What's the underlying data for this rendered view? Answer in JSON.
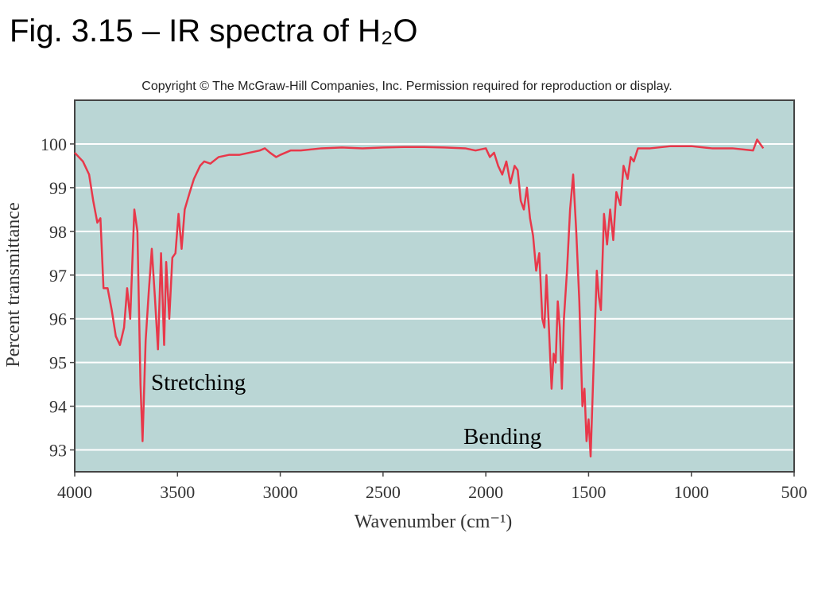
{
  "chart_data": {
    "type": "line",
    "title": "Fig. 3.15 – IR spectra of H₂O",
    "subtitle": "Copyright © The McGraw-Hill Companies, Inc. Permission required for reproduction or display.",
    "x_label": "Wavenumber (cm⁻¹)",
    "y_label": "Percent transmittance",
    "annotations": [
      "Stretching",
      "Bending"
    ],
    "color": "#e8384a",
    "grid": true,
    "xlim": [
      4000,
      500
    ],
    "ylim": [
      92.5,
      101
    ],
    "xticks": [
      4000,
      3500,
      3000,
      2500,
      2000,
      1500,
      1000,
      500
    ],
    "yticks": [
      93,
      94,
      95,
      96,
      97,
      98,
      99,
      100
    ],
    "x": [
      4000,
      3960,
      3930,
      3910,
      3890,
      3875,
      3860,
      3840,
      3820,
      3800,
      3780,
      3760,
      3745,
      3730,
      3710,
      3695,
      3680,
      3670,
      3655,
      3640,
      3625,
      3610,
      3595,
      3580,
      3565,
      3555,
      3540,
      3525,
      3510,
      3495,
      3480,
      3465,
      3440,
      3420,
      3390,
      3370,
      3340,
      3300,
      3250,
      3200,
      3150,
      3100,
      3075,
      3050,
      3020,
      3000,
      2950,
      2900,
      2800,
      2700,
      2600,
      2500,
      2400,
      2300,
      2200,
      2100,
      2050,
      2000,
      1980,
      1960,
      1940,
      1920,
      1900,
      1880,
      1860,
      1845,
      1830,
      1815,
      1800,
      1785,
      1770,
      1755,
      1740,
      1725,
      1715,
      1705,
      1695,
      1680,
      1670,
      1660,
      1650,
      1640,
      1630,
      1620,
      1605,
      1590,
      1575,
      1560,
      1545,
      1530,
      1520,
      1510,
      1500,
      1490,
      1475,
      1460,
      1450,
      1440,
      1425,
      1410,
      1395,
      1380,
      1365,
      1345,
      1330,
      1310,
      1295,
      1280,
      1260,
      1200,
      1100,
      1000,
      900,
      800,
      700,
      680,
      650
    ],
    "values": [
      99.8,
      99.6,
      99.3,
      98.7,
      98.2,
      98.3,
      96.7,
      96.7,
      96.2,
      95.6,
      95.4,
      95.8,
      96.7,
      96.0,
      98.5,
      98.0,
      94.5,
      93.2,
      95.5,
      96.6,
      97.6,
      96.5,
      95.3,
      97.5,
      95.4,
      97.3,
      96.0,
      97.4,
      97.5,
      98.4,
      97.6,
      98.5,
      98.9,
      99.2,
      99.5,
      99.6,
      99.55,
      99.7,
      99.75,
      99.75,
      99.8,
      99.85,
      99.9,
      99.8,
      99.7,
      99.75,
      99.85,
      99.85,
      99.9,
      99.92,
      99.9,
      99.92,
      99.93,
      99.93,
      99.92,
      99.9,
      99.85,
      99.9,
      99.7,
      99.8,
      99.5,
      99.3,
      99.6,
      99.1,
      99.5,
      99.4,
      98.7,
      98.5,
      99.0,
      98.3,
      97.9,
      97.1,
      97.5,
      96.0,
      95.8,
      97.0,
      96.0,
      94.4,
      95.2,
      95.0,
      96.4,
      95.8,
      94.4,
      96.0,
      97.1,
      98.5,
      99.3,
      98.0,
      96.4,
      94.0,
      94.4,
      93.2,
      93.7,
      92.85,
      95.0,
      97.1,
      96.5,
      96.2,
      98.4,
      97.7,
      98.5,
      97.8,
      98.9,
      98.6,
      99.5,
      99.2,
      99.7,
      99.6,
      99.9,
      99.9,
      99.95,
      99.95,
      99.9,
      99.9,
      99.85,
      100.1,
      99.9
    ]
  }
}
